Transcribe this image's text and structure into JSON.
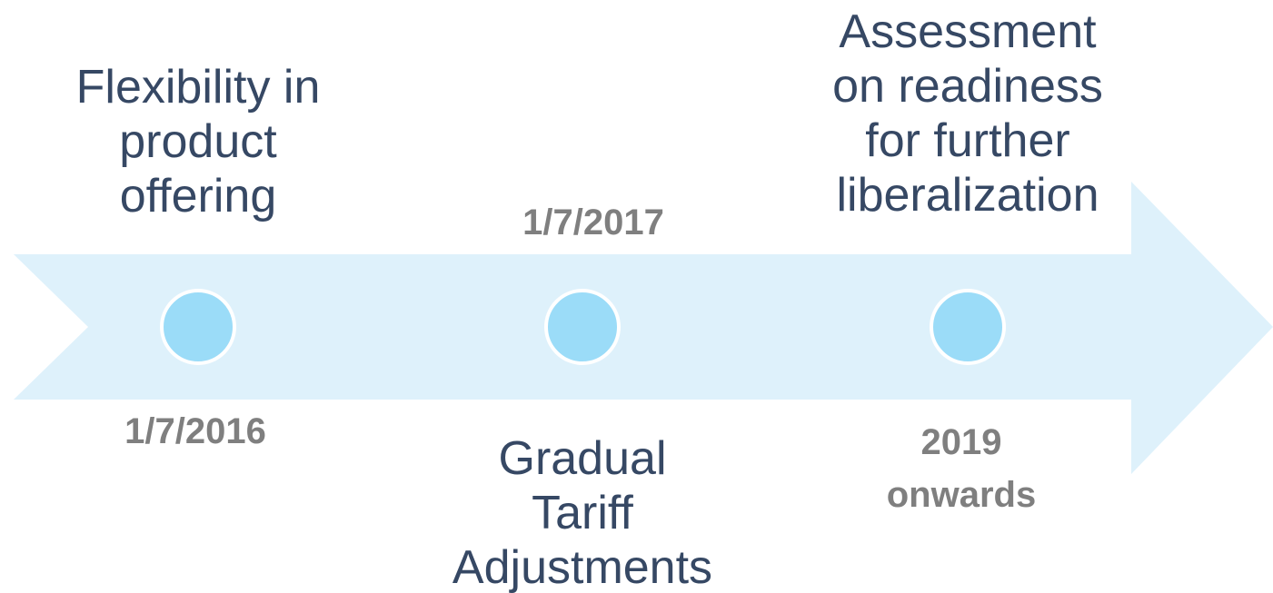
{
  "milestones": [
    {
      "label": [
        "Flexibility in",
        "product",
        "offering"
      ],
      "date": [
        "1/7/2016"
      ]
    },
    {
      "label": [
        "Gradual",
        "Tariff",
        "Adjustments"
      ],
      "date": [
        "1/7/2017"
      ]
    },
    {
      "label": [
        "Assessment",
        "on readiness",
        "for further",
        "liberalization"
      ],
      "date": [
        "2019",
        "onwards"
      ]
    }
  ]
}
